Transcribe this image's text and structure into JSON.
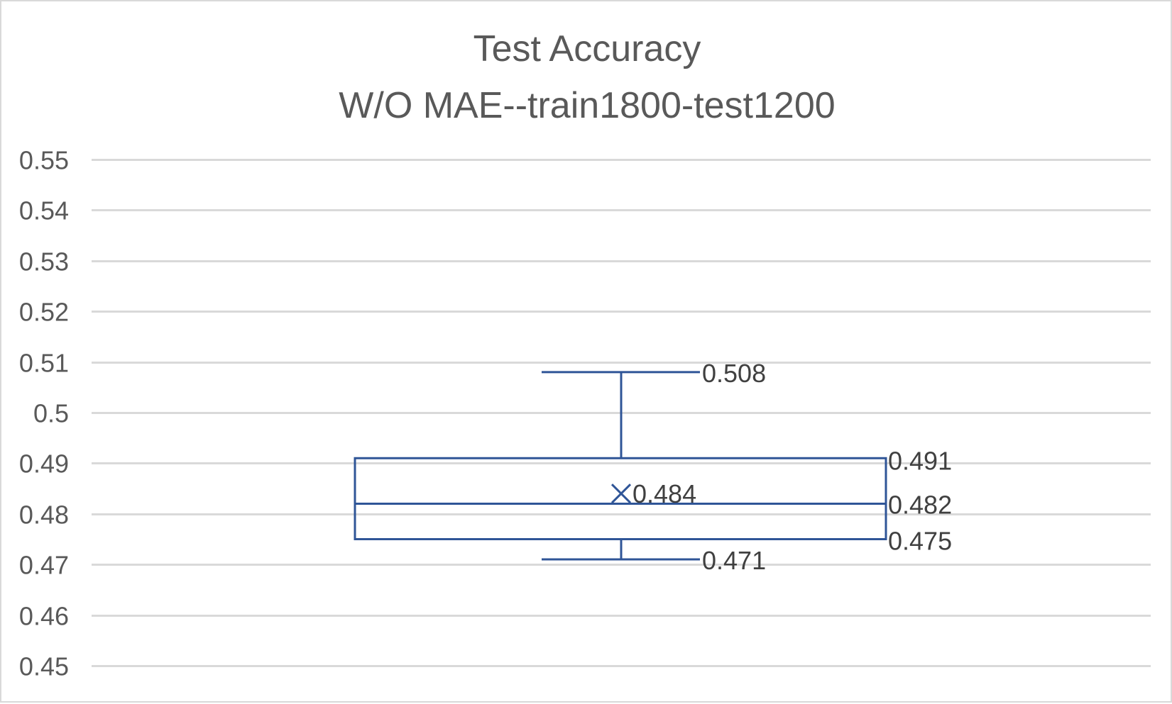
{
  "chart_data": {
    "type": "box",
    "title": [
      "Test Accuracy",
      "W/O MAE--train1800-test1200"
    ],
    "xlabel": "",
    "ylabel": "",
    "ylim": [
      0.45,
      0.55
    ],
    "yticks": [
      0.45,
      0.46,
      0.47,
      0.48,
      0.49,
      0.5,
      0.51,
      0.52,
      0.53,
      0.54,
      0.55
    ],
    "ytick_labels": [
      "0.45",
      "0.46",
      "0.47",
      "0.48",
      "0.49",
      "0.5",
      "0.51",
      "0.52",
      "0.53",
      "0.54",
      "0.55"
    ],
    "grid": true,
    "series": [
      {
        "min": 0.471,
        "q1": 0.475,
        "median": 0.482,
        "q3": 0.491,
        "max": 0.508,
        "mean": 0.484,
        "labels": {
          "min": "0.471",
          "q1": "0.475",
          "median": "0.482",
          "q3": "0.491",
          "max": "0.508",
          "mean": "0.484"
        }
      }
    ],
    "colors": {
      "box": "#2f5597",
      "grid": "#d9d9d9",
      "axis_text": "#595959",
      "label_text": "#404040"
    }
  }
}
